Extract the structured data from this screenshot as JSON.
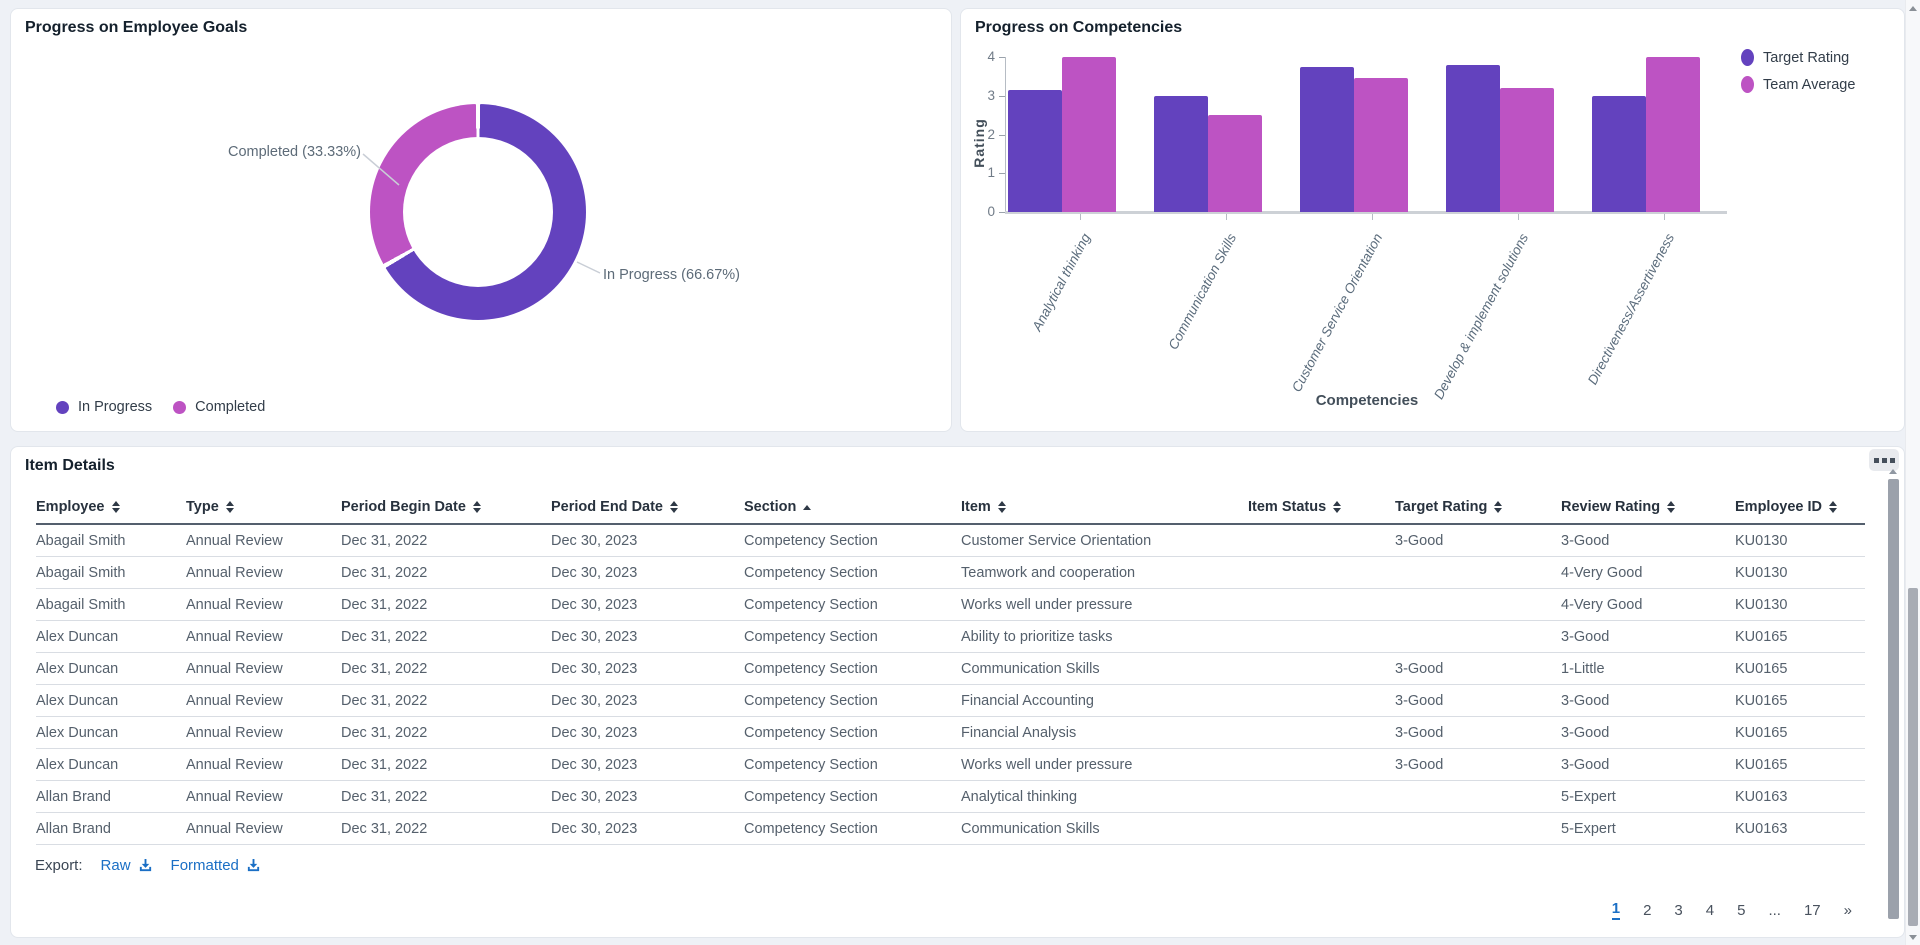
{
  "goals_panel": {
    "title": "Progress on Employee Goals",
    "callout_completed": "Completed (33.33%)",
    "callout_in_progress": "In Progress (66.67%)",
    "legend": [
      {
        "label": "In Progress",
        "color": "#6342BE"
      },
      {
        "label": "Completed",
        "color": "#BD53C3"
      }
    ]
  },
  "competencies_panel": {
    "title": "Progress on Competencies"
  },
  "chart_data": [
    {
      "type": "pie",
      "variant": "donut",
      "title": "Progress on Employee Goals",
      "slices": [
        {
          "label": "In Progress",
          "value": 66.67,
          "color": "#6342BE"
        },
        {
          "label": "Completed",
          "value": 33.33,
          "color": "#BD53C3"
        }
      ],
      "callout_labels": [
        "In Progress (66.67%)",
        "Completed (33.33%)"
      ],
      "legend_position": "bottom-left"
    },
    {
      "type": "bar",
      "title": "Progress on Competencies",
      "categories": [
        "Analytical thinking",
        "Communication Skills",
        "Customer Service Orientation",
        "Develop & implement solutions",
        "Directiveness/Assertiveness"
      ],
      "series": [
        {
          "name": "Target Rating",
          "color": "#6342BE",
          "values": [
            3.15,
            3.0,
            3.75,
            3.8,
            3.0
          ]
        },
        {
          "name": "Team Average",
          "color": "#BD53C3",
          "values": [
            4.0,
            2.5,
            3.45,
            3.2,
            4.0
          ]
        }
      ],
      "xlabel": "Competencies",
      "ylabel": "Rating",
      "ylim": [
        0,
        4
      ],
      "yticks": [
        0,
        1,
        2,
        3,
        4
      ],
      "grid": false,
      "legend_position": "right"
    }
  ],
  "item_details": {
    "title": "Item Details",
    "options_icon": "grid-options-icon",
    "columns": [
      {
        "label": "Employee",
        "sort": "both"
      },
      {
        "label": "Type",
        "sort": "both"
      },
      {
        "label": "Period Begin Date",
        "sort": "both"
      },
      {
        "label": "Period End Date",
        "sort": "both"
      },
      {
        "label": "Section",
        "sort": "asc"
      },
      {
        "label": "Item",
        "sort": "both"
      },
      {
        "label": "Item Status",
        "sort": "both"
      },
      {
        "label": "Target Rating",
        "sort": "both"
      },
      {
        "label": "Review Rating",
        "sort": "both"
      },
      {
        "label": "Employee ID",
        "sort": "both"
      }
    ],
    "rows": [
      [
        "Abagail Smith",
        "Annual Review",
        "Dec 31, 2022",
        "Dec 30, 2023",
        "Competency Section",
        "Customer Service Orientation",
        "",
        "3-Good",
        "3-Good",
        "KU0130"
      ],
      [
        "Abagail Smith",
        "Annual Review",
        "Dec 31, 2022",
        "Dec 30, 2023",
        "Competency Section",
        "Teamwork and cooperation",
        "",
        "",
        "4-Very Good",
        "KU0130"
      ],
      [
        "Abagail Smith",
        "Annual Review",
        "Dec 31, 2022",
        "Dec 30, 2023",
        "Competency Section",
        "Works well under pressure",
        "",
        "",
        "4-Very Good",
        "KU0130"
      ],
      [
        "Alex Duncan",
        "Annual Review",
        "Dec 31, 2022",
        "Dec 30, 2023",
        "Competency Section",
        "Ability to prioritize tasks",
        "",
        "",
        "3-Good",
        "KU0165"
      ],
      [
        "Alex Duncan",
        "Annual Review",
        "Dec 31, 2022",
        "Dec 30, 2023",
        "Competency Section",
        "Communication Skills",
        "",
        "3-Good",
        "1-Little",
        "KU0165"
      ],
      [
        "Alex Duncan",
        "Annual Review",
        "Dec 31, 2022",
        "Dec 30, 2023",
        "Competency Section",
        "Financial Accounting",
        "",
        "3-Good",
        "3-Good",
        "KU0165"
      ],
      [
        "Alex Duncan",
        "Annual Review",
        "Dec 31, 2022",
        "Dec 30, 2023",
        "Competency Section",
        "Financial Analysis",
        "",
        "3-Good",
        "3-Good",
        "KU0165"
      ],
      [
        "Alex Duncan",
        "Annual Review",
        "Dec 31, 2022",
        "Dec 30, 2023",
        "Competency Section",
        "Works well under pressure",
        "",
        "3-Good",
        "3-Good",
        "KU0165"
      ],
      [
        "Allan Brand",
        "Annual Review",
        "Dec 31, 2022",
        "Dec 30, 2023",
        "Competency Section",
        "Analytical thinking",
        "",
        "",
        "5-Expert",
        "KU0163"
      ],
      [
        "Allan Brand",
        "Annual Review",
        "Dec 31, 2022",
        "Dec 30, 2023",
        "Competency Section",
        "Communication Skills",
        "",
        "",
        "5-Expert",
        "KU0163"
      ]
    ],
    "export": {
      "label": "Export:",
      "links": [
        {
          "label": "Raw",
          "icon": "download-icon"
        },
        {
          "label": "Formatted",
          "icon": "download-icon"
        }
      ]
    },
    "pagination": {
      "current": "1",
      "pages": [
        "1",
        "2",
        "3",
        "4",
        "5",
        "...",
        "17",
        "»"
      ]
    }
  }
}
